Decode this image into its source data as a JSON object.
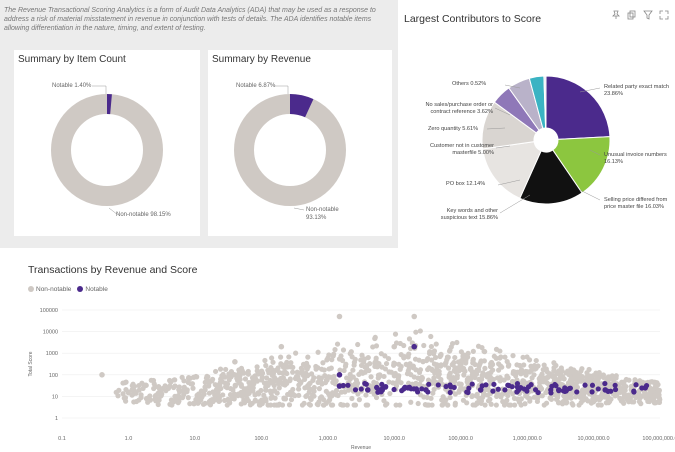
{
  "intro_text": "The Revenue Transactional Scoring Analytics is a form of Audit Data Analytics (ADA) that may be used as a response to address a risk of material misstatement in revenue in conjunction with tests of details. The ADA identifies notable items allowing differentiation in the nature, timing, and extent of testing.",
  "summary_item_count": {
    "title": "Summary by Item Count",
    "notable_label": "Notable 1.40%",
    "non_notable_label": "Non-notable 98.15%"
  },
  "summary_revenue": {
    "title": "Summary by Revenue",
    "notable_label": "Notable 6.87%",
    "non_notable_label": "Non-notable 93.13%"
  },
  "largest_contributors": {
    "title": "Largest Contributors to Score",
    "labels": {
      "others": "Others 0.52%",
      "no_sales": "No sales/purchase order or contract reference 3.62%",
      "zero_qty": "Zero quantity 5.61%",
      "customer_master": "Customer not in customer masterfile 5.00%",
      "po_box": "PO box 12.14%",
      "keywords": "Key words and other suspicious text 15.86%",
      "related_party": "Related party exact match 23.86%",
      "unusual_invoice": "Unusual invoice numbers 16.13%",
      "selling_price": "Selling price differed from price master file 16.03%"
    }
  },
  "icons": [
    "pin-icon",
    "copy-icon",
    "filter-icon",
    "expand-icon"
  ],
  "scatter_title": "Transactions by Revenue and Score",
  "legend": {
    "non_notable": "Non-notable",
    "notable": "Notable"
  },
  "colors": {
    "notable": "#4b2a8c",
    "non_notable": "#cfc9c4",
    "green": "#8cc63f",
    "black": "#111111",
    "teal": "#3bb3c3"
  },
  "chart_data": [
    {
      "type": "pie",
      "title": "Summary by Item Count",
      "categories": [
        "Notable",
        "Non-notable"
      ],
      "values": [
        1.4,
        98.15
      ]
    },
    {
      "type": "pie",
      "title": "Summary by Revenue",
      "categories": [
        "Notable",
        "Non-notable"
      ],
      "values": [
        6.87,
        93.13
      ]
    },
    {
      "type": "pie",
      "title": "Largest Contributors to Score",
      "categories": [
        "Related party exact match",
        "Unusual invoice numbers",
        "Selling price differed from price master file",
        "Key words and other suspicious text",
        "PO box",
        "Customer not in customer masterfile",
        "Zero quantity",
        "No sales/purchase order or contract reference",
        "Others"
      ],
      "values": [
        23.86,
        16.13,
        16.03,
        15.86,
        12.14,
        5.0,
        5.61,
        3.62,
        0.52
      ]
    },
    {
      "type": "scatter",
      "title": "Transactions by Revenue and Score",
      "xlabel": "Revenue",
      "ylabel": "Total Score",
      "xscale": "log",
      "yscale": "log",
      "xticks": [
        "0.1",
        "1.0",
        "10.0",
        "100.0",
        "1,000.0",
        "10,000.0",
        "100,000.0",
        "1,000,000.0",
        "10,000,000.0",
        "100,000,000.0"
      ],
      "yticks": [
        "100000",
        "10000",
        "1000",
        "100",
        "10",
        "1"
      ],
      "xlim": [
        0.1,
        100000000
      ],
      "ylim": [
        1,
        100000
      ],
      "series": [
        {
          "name": "Non-notable",
          "points": [
            [
              0.4,
              100
            ],
            [
              40,
              400
            ],
            [
              200,
              2000
            ],
            [
              1500,
              50000
            ],
            [
              20000,
              50000
            ],
            [
              10000,
              2000
            ],
            [
              50000,
              800
            ],
            [
              300000,
              300
            ],
            [
              3000000,
              150
            ],
            [
              20000000,
              60
            ],
            [
              50,
              15
            ],
            [
              500,
              30
            ],
            [
              5000,
              40
            ],
            [
              80000,
              60
            ],
            [
              600000,
              40
            ],
            [
              5000000,
              25
            ]
          ]
        },
        {
          "name": "Notable",
          "points": [
            [
              1500,
              30
            ],
            [
              20000,
              2000
            ],
            [
              1500,
              100
            ],
            [
              4000,
              20
            ],
            [
              30000,
              20
            ],
            [
              200000,
              20
            ],
            [
              800000,
              25
            ],
            [
              3000000,
              20
            ],
            [
              15000000,
              20
            ],
            [
              60000000,
              25
            ]
          ]
        }
      ]
    }
  ]
}
